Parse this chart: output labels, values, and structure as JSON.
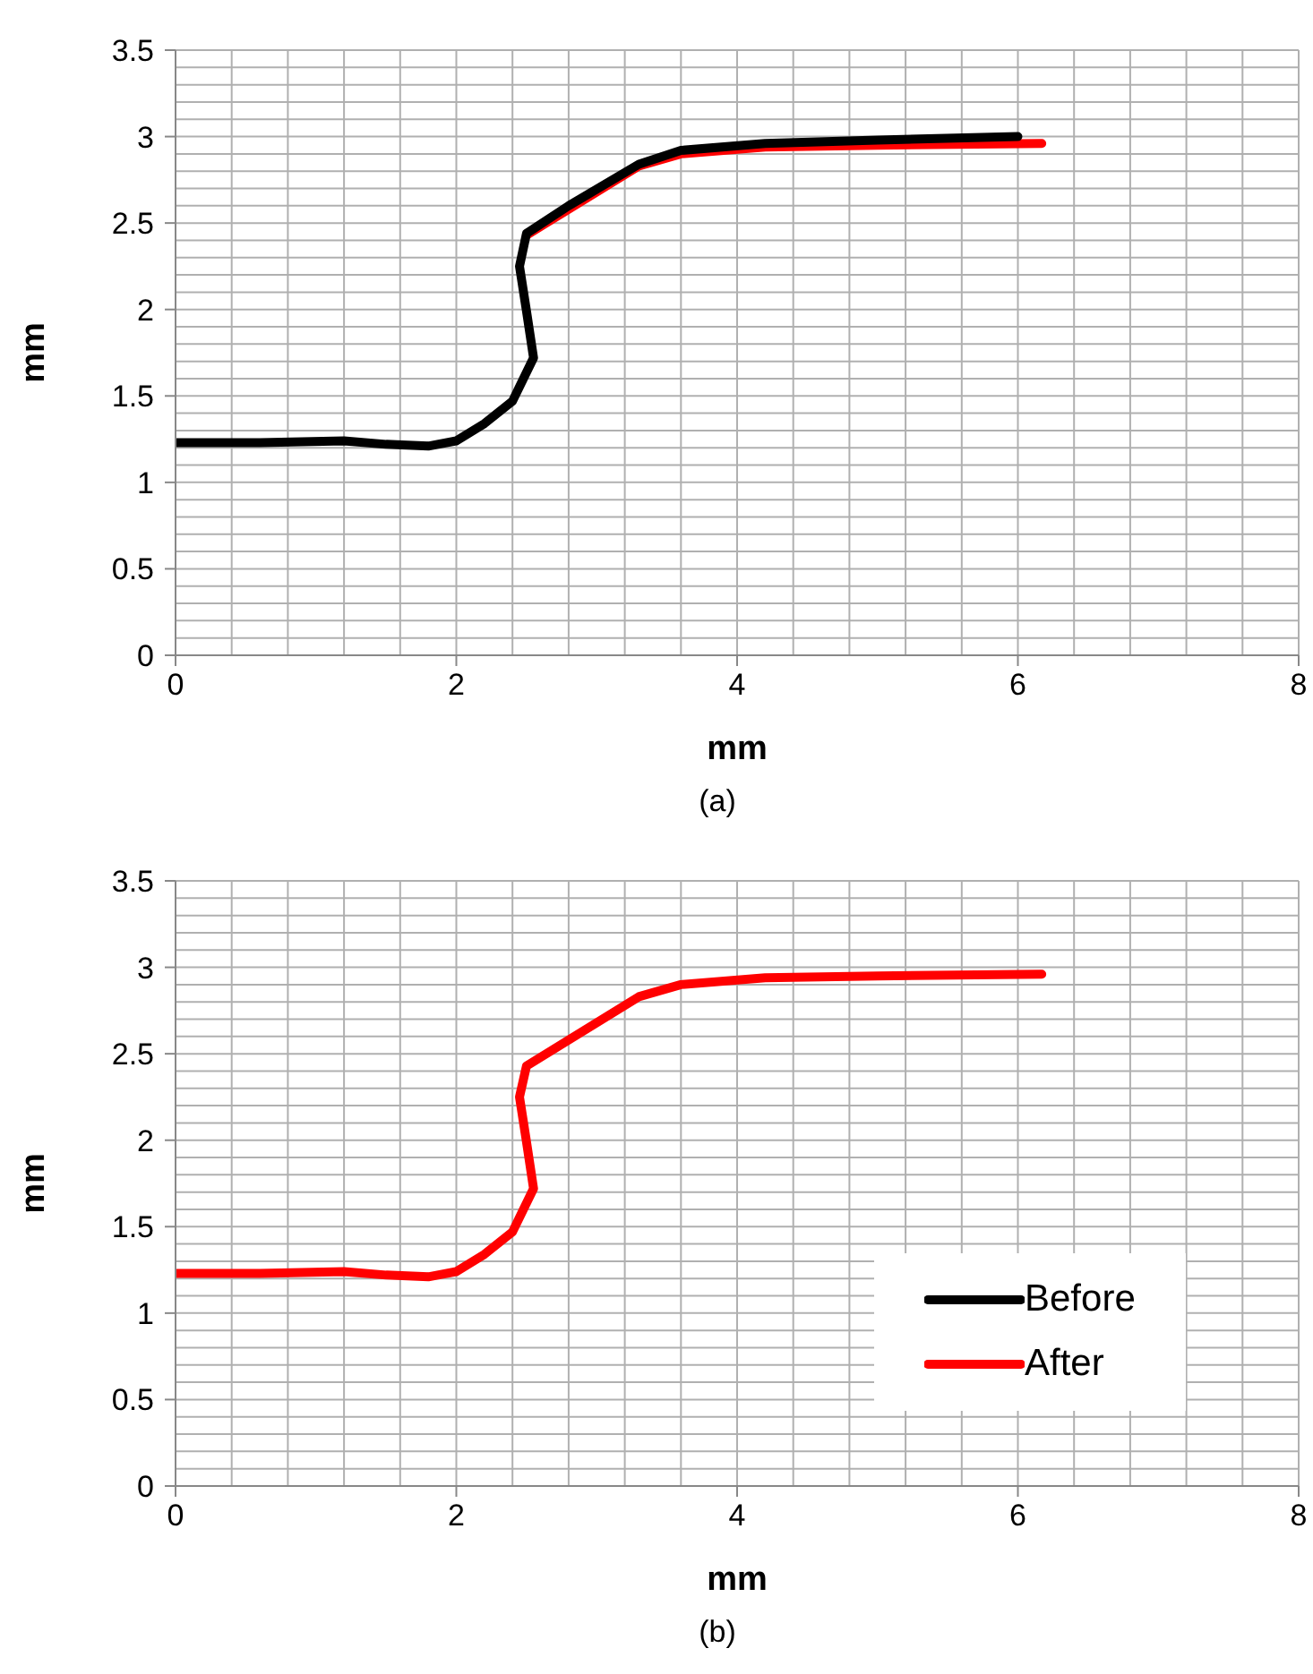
{
  "chart_data": [
    {
      "type": "line",
      "xlabel": "mm",
      "ylabel": "mm",
      "xlim": [
        0,
        8
      ],
      "ylim": [
        0,
        3.5
      ],
      "xticks": [
        0,
        {
          "value": 0.4,
          "label": null
        },
        {
          "value": 0.8,
          "label": null
        },
        {
          "value": 1.2,
          "label": null
        },
        {
          "value": 1.6,
          "label": null
        },
        2,
        {
          "value": 2.4,
          "label": null
        },
        {
          "value": 2.8,
          "label": null
        },
        {
          "value": 3.2,
          "label": null
        },
        {
          "value": 3.6,
          "label": null
        },
        4,
        {
          "value": 4.4,
          "label": null
        },
        {
          "value": 4.8,
          "label": null
        },
        {
          "value": 5.2,
          "label": null
        },
        {
          "value": 5.6,
          "label": null
        },
        6,
        {
          "value": 6.4,
          "label": null
        },
        {
          "value": 6.8,
          "label": null
        },
        {
          "value": 7.2,
          "label": null
        },
        {
          "value": 7.6,
          "label": null
        },
        8
      ],
      "yticks": [
        0,
        {
          "value": 0.1,
          "label": null
        },
        {
          "value": 0.2,
          "label": null
        },
        {
          "value": 0.3,
          "label": null
        },
        {
          "value": 0.4,
          "label": null
        },
        0.5,
        {
          "value": 0.6,
          "label": null
        },
        {
          "value": 0.7,
          "label": null
        },
        {
          "value": 0.8,
          "label": null
        },
        {
          "value": 0.9,
          "label": null
        },
        1,
        {
          "value": 1.1,
          "label": null
        },
        {
          "value": 1.2,
          "label": null
        },
        {
          "value": 1.3,
          "label": null
        },
        {
          "value": 1.4,
          "label": null
        },
        1.5,
        {
          "value": 1.6,
          "label": null
        },
        {
          "value": 1.7,
          "label": null
        },
        {
          "value": 1.8,
          "label": null
        },
        {
          "value": 1.9,
          "label": null
        },
        2,
        {
          "value": 2.1,
          "label": null
        },
        {
          "value": 2.2,
          "label": null
        },
        {
          "value": 2.3,
          "label": null
        },
        {
          "value": 2.4,
          "label": null
        },
        2.5,
        {
          "value": 2.6,
          "label": null
        },
        {
          "value": 2.7,
          "label": null
        },
        {
          "value": 2.8,
          "label": null
        },
        {
          "value": 2.9,
          "label": null
        },
        3,
        {
          "value": 3.1,
          "label": null
        },
        {
          "value": 3.2,
          "label": null
        },
        {
          "value": 3.3,
          "label": null
        },
        {
          "value": 3.4,
          "label": null
        },
        3.5
      ],
      "grid": true,
      "legend": false,
      "marker": "none",
      "line_style": "solid",
      "series": [
        {
          "color": "#ff0000",
          "x": [
            2.5,
            2.8,
            3.3,
            3.6,
            4.2,
            5.0,
            6.17
          ],
          "values": [
            2.43,
            2.58,
            2.83,
            2.9,
            2.94,
            2.95,
            2.96
          ]
        },
        {
          "color": "#000000",
          "x": [
            0,
            0.6,
            1.2,
            1.5,
            1.8,
            2.0,
            2.2,
            2.4,
            2.55,
            2.5,
            2.45,
            2.5,
            2.8,
            3.3,
            3.6,
            4.2,
            5.0,
            6.0
          ],
          "values": [
            1.23,
            1.23,
            1.24,
            1.22,
            1.21,
            1.24,
            1.34,
            1.47,
            1.72,
            1.99,
            2.25,
            2.44,
            2.6,
            2.84,
            2.92,
            2.96,
            2.98,
            3.0
          ]
        }
      ],
      "annotations": [
        "(a)"
      ]
    },
    {
      "type": "line",
      "xlabel": "mm",
      "ylabel": "mm",
      "xlim": [
        0,
        8
      ],
      "ylim": [
        0,
        3.5
      ],
      "xticks": [
        0,
        {
          "value": 0.4,
          "label": null
        },
        {
          "value": 0.8,
          "label": null
        },
        {
          "value": 1.2,
          "label": null
        },
        {
          "value": 1.6,
          "label": null
        },
        2,
        {
          "value": 2.4,
          "label": null
        },
        {
          "value": 2.8,
          "label": null
        },
        {
          "value": 3.2,
          "label": null
        },
        {
          "value": 3.6,
          "label": null
        },
        4,
        {
          "value": 4.4,
          "label": null
        },
        {
          "value": 4.8,
          "label": null
        },
        {
          "value": 5.2,
          "label": null
        },
        {
          "value": 5.6,
          "label": null
        },
        6,
        {
          "value": 6.4,
          "label": null
        },
        {
          "value": 6.8,
          "label": null
        },
        {
          "value": 7.2,
          "label": null
        },
        {
          "value": 7.6,
          "label": null
        },
        8
      ],
      "yticks": [
        0,
        {
          "value": 0.1,
          "label": null
        },
        {
          "value": 0.2,
          "label": null
        },
        {
          "value": 0.3,
          "label": null
        },
        {
          "value": 0.4,
          "label": null
        },
        0.5,
        {
          "value": 0.6,
          "label": null
        },
        {
          "value": 0.7,
          "label": null
        },
        {
          "value": 0.8,
          "label": null
        },
        {
          "value": 0.9,
          "label": null
        },
        1,
        {
          "value": 1.1,
          "label": null
        },
        {
          "value": 1.2,
          "label": null
        },
        {
          "value": 1.3,
          "label": null
        },
        {
          "value": 1.4,
          "label": null
        },
        1.5,
        {
          "value": 1.6,
          "label": null
        },
        {
          "value": 1.7,
          "label": null
        },
        {
          "value": 1.8,
          "label": null
        },
        {
          "value": 1.9,
          "label": null
        },
        2,
        {
          "value": 2.1,
          "label": null
        },
        {
          "value": 2.2,
          "label": null
        },
        {
          "value": 2.3,
          "label": null
        },
        {
          "value": 2.4,
          "label": null
        },
        2.5,
        {
          "value": 2.6,
          "label": null
        },
        {
          "value": 2.7,
          "label": null
        },
        {
          "value": 2.8,
          "label": null
        },
        {
          "value": 2.9,
          "label": null
        },
        3,
        {
          "value": 3.1,
          "label": null
        },
        {
          "value": 3.2,
          "label": null
        },
        {
          "value": 3.3,
          "label": null
        },
        {
          "value": 3.4,
          "label": null
        },
        3.5
      ],
      "grid": true,
      "legend": "bottom right",
      "marker": "none",
      "line_style": "solid",
      "series": [
        {
          "name": "Before",
          "color": "#000000"
        },
        {
          "name": "After",
          "color": "#ff0000",
          "x": [
            0,
            0.6,
            1.2,
            1.5,
            1.8,
            2.0,
            2.2,
            2.4,
            2.55,
            2.5,
            2.45,
            2.5,
            2.8,
            3.3,
            3.6,
            4.2,
            5.0,
            6.17
          ],
          "values": [
            1.23,
            1.23,
            1.24,
            1.22,
            1.21,
            1.24,
            1.34,
            1.47,
            1.72,
            1.99,
            2.25,
            2.43,
            2.58,
            2.83,
            2.9,
            2.94,
            2.95,
            2.96
          ]
        }
      ],
      "annotations": [
        "(b)"
      ]
    }
  ]
}
